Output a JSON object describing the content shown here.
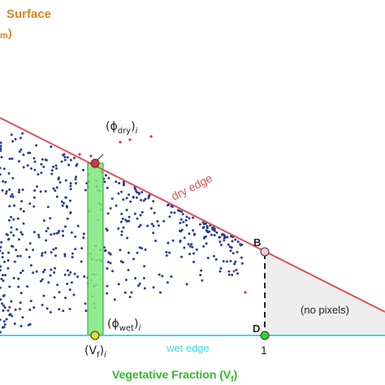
{
  "axis": {
    "y_title_line1": "Surface",
    "y_title_line2_sub": "m",
    "y_title_line2_paren": ")",
    "x_title": "Vegetative Fraction (V",
    "x_title_sub": "f",
    "x_title_close": ")"
  },
  "lines": {
    "dry_edge": "dry edge",
    "wet_edge": "wet edge"
  },
  "points": {
    "B": "B",
    "D": "D",
    "phi_dry": "(ϕ",
    "phi_dry_sub": "dry",
    "phi_dry_close": ")",
    "phi_dry_i": "i",
    "phi_wet": "(ϕ",
    "phi_wet_sub": "wet",
    "phi_wet_close": ")",
    "phi_wet_i": "i",
    "vf": "(V",
    "vf_sub": "f",
    "vf_close": ")",
    "vf_i": "i",
    "one": "1"
  },
  "region": {
    "no_pixels": "(no pixels)"
  },
  "colors": {
    "dry_edge": "#e0505a",
    "wet_edge": "#3fd6e6",
    "band_fill": "#7ee87e",
    "band_stroke": "#2fb82f",
    "scatter": "#2a3d8f",
    "scatter_red": "#d23a4a",
    "title_orange": "#d8861e",
    "x_title_green": "#2fb82f",
    "triangle_fill": "#eeeeee"
  }
}
